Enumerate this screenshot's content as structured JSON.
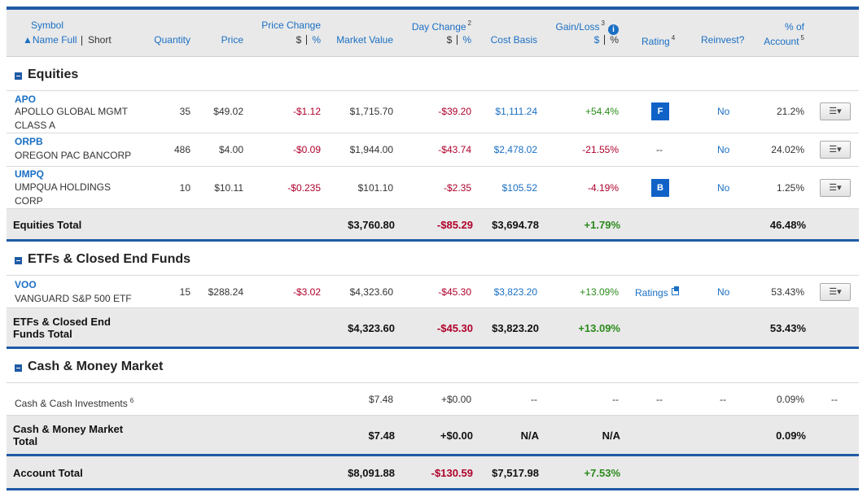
{
  "header": {
    "symbol": "Symbol",
    "name_full": "▲Name Full",
    "short": "Short",
    "quantity": "Quantity",
    "price": "Price",
    "price_change": "Price Change",
    "pc_dollar": "$",
    "pc_pct": "%",
    "market_value": "Market Value",
    "day_change": "Day Change",
    "day_change_sup": "2",
    "dc_dollar": "$",
    "dc_pct": "%",
    "cost_basis": "Cost Basis",
    "gain_loss": "Gain/Loss",
    "gain_loss_sup": "3",
    "gl_dollar": "$",
    "gl_pct": "%",
    "rating": "Rating",
    "rating_sup": "4",
    "reinvest": "Reinvest?",
    "pct_of": "% of",
    "account": "Account",
    "account_sup": "5",
    "info_glyph": "i"
  },
  "sections": [
    {
      "title": "Equities",
      "rows": [
        {
          "symbol": "APO",
          "desc1": "APOLLO GLOBAL MGMT",
          "desc2": "CLASS A",
          "qty": "35",
          "price": "$49.02",
          "pchg": "-$1.12",
          "mv": "$1,715.70",
          "dchg": "-$39.20",
          "cost": "$1,111.24",
          "gl": "+54.4%",
          "rating": "F",
          "reinvest": "No",
          "pct": "21.2%",
          "menu": "☰▾"
        },
        {
          "symbol": "ORPB",
          "desc1": "OREGON PAC BANCORP",
          "desc2": "",
          "qty": "486",
          "price": "$4.00",
          "pchg": "-$0.09",
          "mv": "$1,944.00",
          "dchg": "-$43.74",
          "cost": "$2,478.02",
          "gl": "-21.55%",
          "rating": "--",
          "reinvest": "No",
          "pct": "24.02%",
          "menu": "☰▾"
        },
        {
          "symbol": "UMPQ",
          "desc1": "UMPQUA HOLDINGS",
          "desc2": "CORP",
          "qty": "10",
          "price": "$10.11",
          "pchg": "-$0.235",
          "mv": "$101.10",
          "dchg": "-$2.35",
          "cost": "$105.52",
          "gl": "-4.19%",
          "rating": "B",
          "reinvest": "No",
          "pct": "1.25%",
          "menu": "☰▾"
        }
      ],
      "total": {
        "label": "Equities Total",
        "label2": "",
        "mv": "$3,760.80",
        "dchg": "-$85.29",
        "cost": "$3,694.78",
        "gl": "+1.79%",
        "pct": "46.48%"
      }
    },
    {
      "title": "ETFs & Closed End Funds",
      "rows": [
        {
          "symbol": "VOO",
          "desc1": "VANGUARD S&P 500 ETF",
          "desc2": "",
          "qty": "15",
          "price": "$288.24",
          "pchg": "-$3.02",
          "mv": "$4,323.60",
          "dchg": "-$45.30",
          "cost": "$3,823.20",
          "gl": "+13.09%",
          "rating": "Ratings",
          "reinvest": "No",
          "pct": "53.43%",
          "menu": "☰▾"
        }
      ],
      "total": {
        "label": "ETFs & Closed End",
        "label2": "Funds Total",
        "mv": "$4,323.60",
        "dchg": "-$45.30",
        "cost": "$3,823.20",
        "gl": "+13.09%",
        "pct": "53.43%"
      }
    },
    {
      "title": "Cash & Money Market",
      "rows": [
        {
          "desc1": "Cash & Cash Investments",
          "sup": "6",
          "mv": "$7.48",
          "dchg": "+$0.00",
          "cost": "--",
          "gl": "--",
          "rating": "--",
          "reinvest": "--",
          "pct": "0.09%",
          "menu": "--"
        }
      ],
      "total": {
        "label": "Cash & Money Market",
        "label2": "Total",
        "mv": "$7.48",
        "dchg": "+$0.00",
        "cost": "N/A",
        "gl": "N/A",
        "pct": "0.09%"
      }
    }
  ],
  "account_total": {
    "label": "Account Total",
    "mv": "$8,091.88",
    "dchg": "-$130.59",
    "cost": "$7,517.98",
    "gl": "+7.53%"
  },
  "colors": {
    "accent": "#1f5aa6",
    "link": "#1a6fc4",
    "negative": "#b0002b",
    "positive": "#2a8a1b"
  }
}
